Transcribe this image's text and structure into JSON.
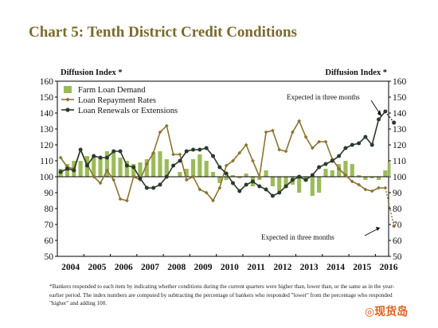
{
  "title": "Chart 5: Tenth District Credit Conditions",
  "footnote": "*Bankers responded to each item by indicating whether conditions during the current quarters were higher than, lower than, or the same as in the year-earlier period. The index numbers are computed by subtracting the percentage of bankers who responded \"lower\" from the percentage who responded \"higher\" and adding 100.",
  "watermark": "◎现货岛",
  "colors": {
    "demand": "#9bbb59",
    "repayment": "#8a7430",
    "renewals": "#2b3a2c",
    "title": "#7a6a2c"
  },
  "chart_data": {
    "type": "bar+line",
    "ylabel_left": "Diffusion Index *",
    "ylabel_right": "Diffusion Index *",
    "ylim": [
      50,
      160
    ],
    "yticks": [
      50,
      60,
      70,
      80,
      90,
      100,
      110,
      120,
      130,
      140,
      150,
      160
    ],
    "year_labels": [
      "2004",
      "2005",
      "2006",
      "2007",
      "2008",
      "2009",
      "2010",
      "2011",
      "2012",
      "2013",
      "2014",
      "2015",
      "2016"
    ],
    "quarters": 50,
    "baseline": 100,
    "annotations": [
      "Expected in three months",
      "Expected in three months"
    ],
    "series": [
      {
        "name": "Farm Loan Demand",
        "kind": "bar",
        "values": [
          105,
          108,
          110,
          110,
          113,
          113,
          112,
          116,
          115,
          112,
          110,
          108,
          109,
          111,
          115,
          116,
          111,
          100,
          103,
          105,
          111,
          114,
          110,
          103,
          96,
          98,
          101,
          99,
          102,
          94,
          98,
          104,
          94,
          91,
          93,
          95,
          90,
          97,
          88,
          90,
          105,
          104,
          108,
          110,
          108,
          101,
          98,
          99,
          98,
          104
        ]
      },
      {
        "name": "Farm Loan Demand (expected)",
        "kind": "bar-expected",
        "values": [
          100,
          109
        ]
      },
      {
        "name": "Loan Repayment Rates",
        "kind": "line",
        "values": [
          112,
          106,
          105,
          117,
          108,
          100,
          96,
          104,
          98,
          86,
          85,
          100,
          98,
          108,
          115,
          128,
          132,
          114,
          114,
          98,
          100,
          92,
          90,
          85,
          93,
          107,
          110,
          115,
          120,
          110,
          100,
          128,
          129,
          117,
          116,
          128,
          135,
          125,
          118,
          122,
          122,
          111,
          105,
          101,
          97,
          95,
          92,
          91,
          93,
          93
        ]
      },
      {
        "name": "Loan Repayment Rates (expected)",
        "kind": "line-expected",
        "values": [
          93,
          69
        ]
      },
      {
        "name": "Loan Renewals or Extensions",
        "kind": "line",
        "values": [
          103,
          105,
          104,
          117,
          107,
          113,
          112,
          112,
          116,
          116,
          107,
          106,
          99,
          93,
          93,
          95,
          100,
          107,
          110,
          116,
          117,
          117,
          118,
          113,
          106,
          102,
          96,
          91,
          95,
          97,
          94,
          92,
          88,
          90,
          94,
          98,
          100,
          98,
          101,
          106,
          108,
          110,
          113,
          118,
          120,
          121,
          125,
          120,
          136,
          141
        ]
      },
      {
        "name": "Loan Renewals or Extensions (expected)",
        "kind": "line-expected",
        "values": [
          141,
          134
        ]
      }
    ]
  }
}
